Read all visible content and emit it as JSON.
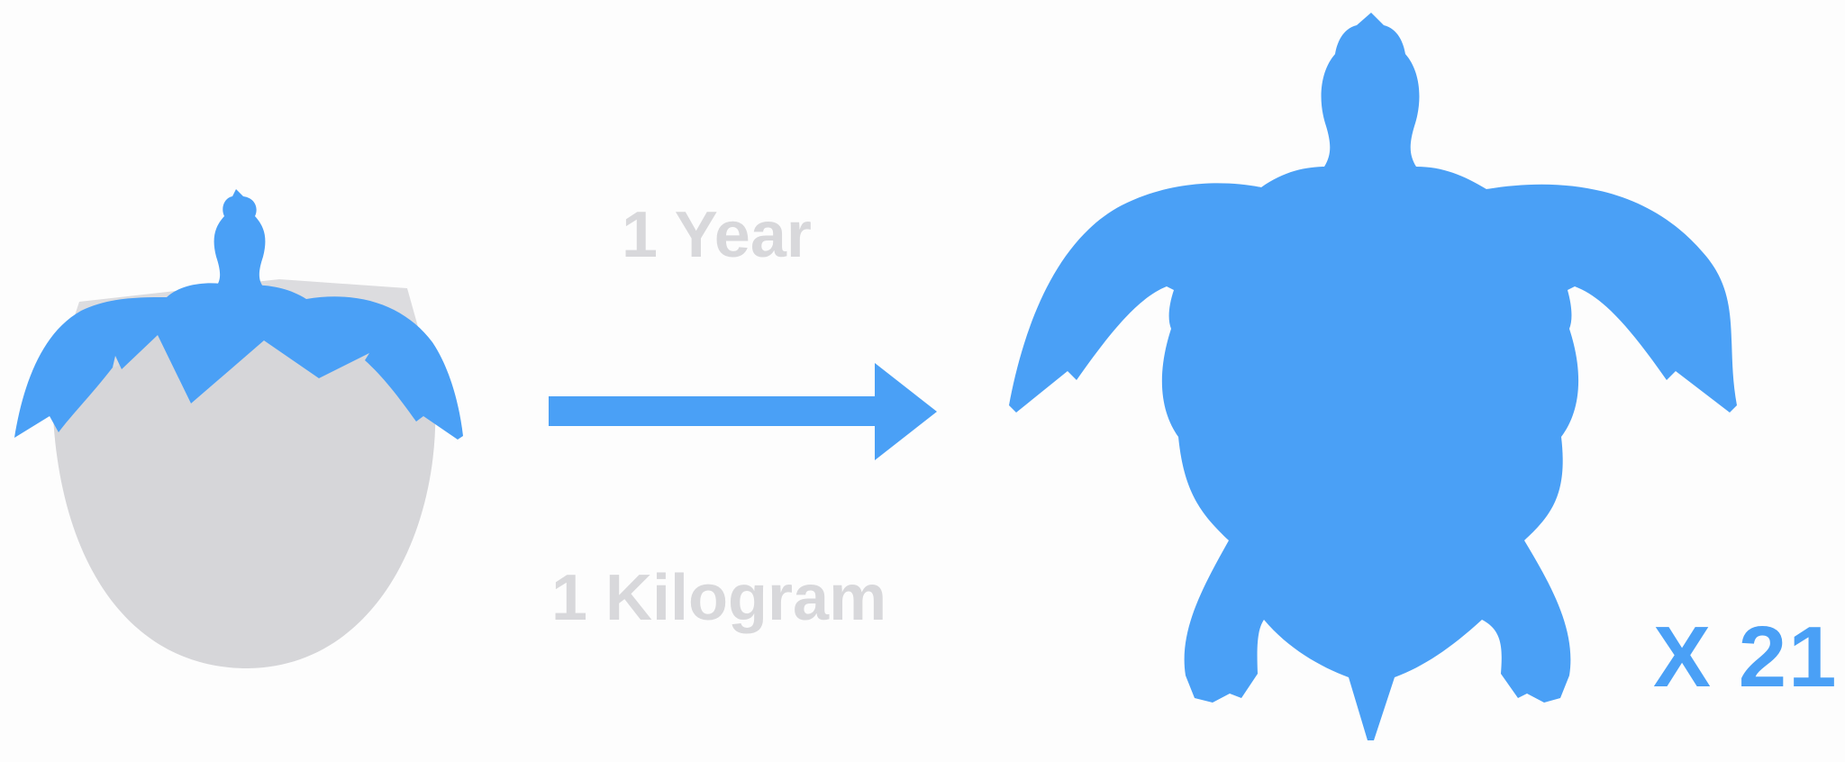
{
  "labels": {
    "time": "1 Year",
    "weight": "1 Kilogram",
    "multiplier": "X 21"
  },
  "colors": {
    "turtle_blue": "#4aa0f6",
    "shell_gray": "#d6d6d9",
    "label_gray": "#d8d8db",
    "background": "#fdfdfd"
  },
  "icons": {
    "left": "hatchling-egg-icon",
    "center": "right-arrow-icon",
    "right": "adult-sea-turtle-icon"
  }
}
